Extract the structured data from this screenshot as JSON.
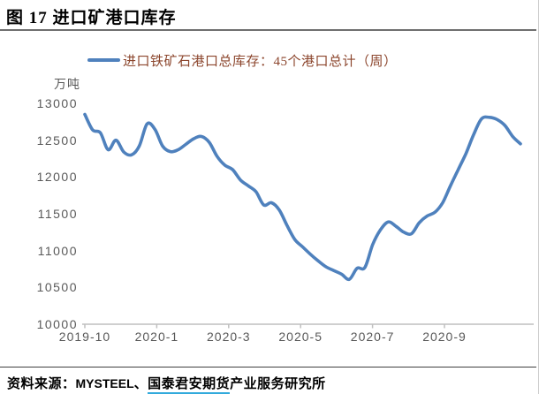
{
  "header": {
    "title": "图 17 进口矿港口库存"
  },
  "legend": {
    "label": "进口铁矿石港口总库存：45个港口总计（周）"
  },
  "chart_data": {
    "type": "line",
    "title": "进口矿港口库存",
    "xlabel": "",
    "ylabel": "万吨",
    "ylim": [
      10000,
      13000
    ],
    "grid": false,
    "legend_position": "top",
    "x_tick_labels": [
      "2019-10",
      "2020-1",
      "2020-3",
      "2020-5",
      "2020-7",
      "2020-9"
    ],
    "y_ticks": [
      13000,
      12500,
      12000,
      11500,
      11000,
      10500,
      10000
    ],
    "series": [
      {
        "name": "进口铁矿石港口总库存：45个港口总计（周）",
        "color": "#4F81BD",
        "frequency": "weekly",
        "values": [
          12850,
          12640,
          12600,
          12370,
          12500,
          12340,
          12300,
          12420,
          12720,
          12650,
          12420,
          12345,
          12370,
          12445,
          12520,
          12550,
          12470,
          12280,
          12160,
          12100,
          11960,
          11880,
          11800,
          11620,
          11650,
          11550,
          11340,
          11150,
          11050,
          10950,
          10860,
          10780,
          10730,
          10680,
          10610,
          10760,
          10770,
          11080,
          11280,
          11390,
          11330,
          11250,
          11230,
          11380,
          11470,
          11520,
          11650,
          11880,
          12100,
          12320,
          12580,
          12790,
          12810,
          12780,
          12700,
          12550,
          12450
        ]
      }
    ]
  },
  "footer": {
    "source_label": "资料来源：",
    "mysteel": "MYSTEEL",
    "separator": "、",
    "gtja_link": "国泰君安期货",
    "suffix": "产业服务研究所"
  },
  "colors": {
    "line": "#4F81BD",
    "legend_text": "#8C462D",
    "axis_line": "#BFBFBF",
    "tick_text": "#595959",
    "link_underline": "#32AADC"
  }
}
